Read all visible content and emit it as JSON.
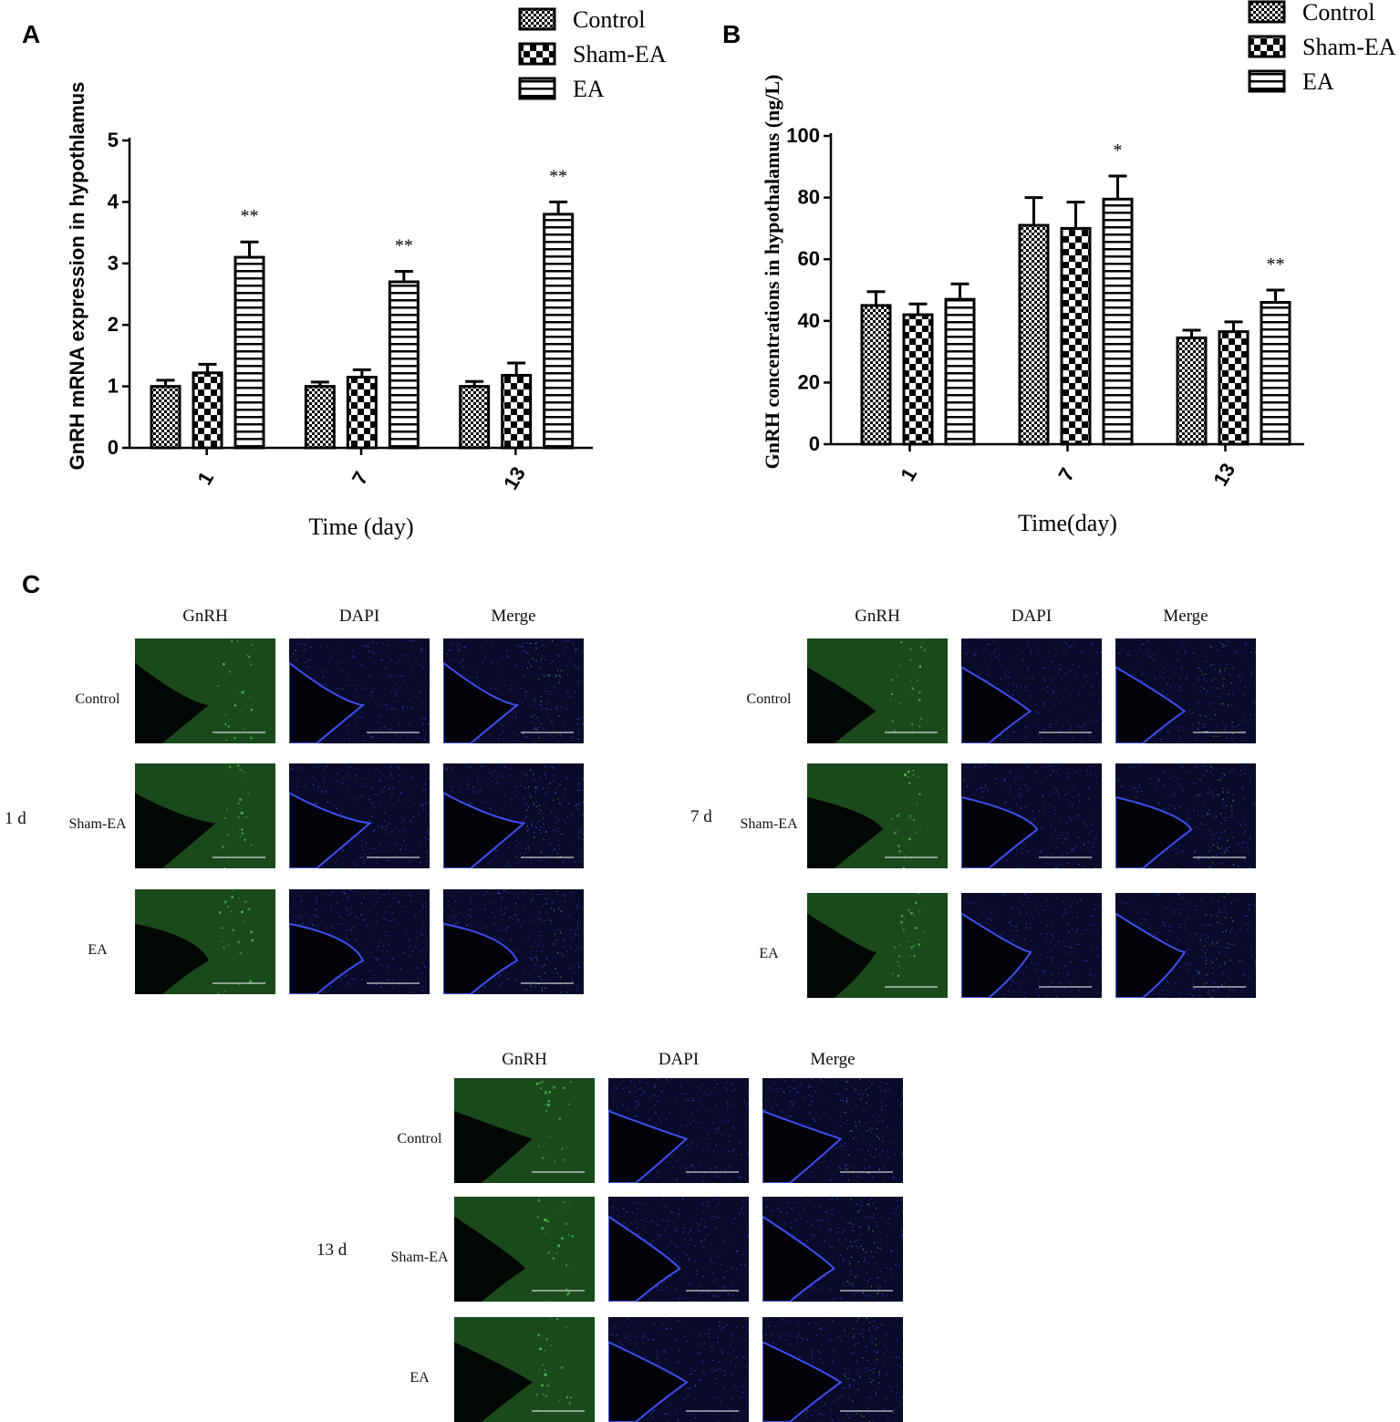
{
  "panels": {
    "a": "A",
    "b": "B",
    "c": "C"
  },
  "colors": {
    "green": "#1e5a22",
    "blue": "#2236b0",
    "black": "#000000"
  },
  "chart_data": [
    {
      "type": "bar",
      "panel": "A",
      "categories": [
        "1",
        "7",
        "13"
      ],
      "series": [
        {
          "name": "Control",
          "pattern": "checker-fine",
          "values": [
            1.0,
            1.0,
            1.0
          ],
          "errors": [
            0.1,
            0.07,
            0.08
          ]
        },
        {
          "name": "Sham-EA",
          "pattern": "checker-coarse",
          "values": [
            1.22,
            1.15,
            1.18
          ],
          "errors": [
            0.14,
            0.12,
            0.2
          ]
        },
        {
          "name": "EA",
          "pattern": "horizontal-stripes",
          "values": [
            3.1,
            2.7,
            3.8
          ],
          "errors": [
            0.25,
            0.17,
            0.2
          ]
        }
      ],
      "significance": [
        "**",
        "**",
        "**"
      ],
      "xlabel": "Time (day)",
      "ylabel": "GnRH mRNA expression in hypothlamus",
      "ylim": [
        0,
        5
      ],
      "yticks": [
        "0",
        "1",
        "2",
        "3",
        "4",
        "5"
      ],
      "legend": "top"
    },
    {
      "type": "bar",
      "panel": "B",
      "categories": [
        "1",
        "7",
        "13"
      ],
      "series": [
        {
          "name": "Control",
          "pattern": "checker-fine",
          "values": [
            45,
            71,
            34.5
          ],
          "errors": [
            4.5,
            9,
            2.5
          ]
        },
        {
          "name": "Sham-EA",
          "pattern": "checker-coarse",
          "values": [
            42,
            70,
            36.5
          ],
          "errors": [
            3.5,
            8.5,
            3.2
          ]
        },
        {
          "name": "EA",
          "pattern": "horizontal-stripes",
          "values": [
            47,
            79.5,
            46
          ],
          "errors": [
            5,
            7.5,
            4
          ]
        }
      ],
      "significance": [
        "",
        "*",
        "**"
      ],
      "xlabel": "Time(day)",
      "ylabel": "GnRH  concentrations in hypothalamus (ng/L)",
      "ylim": [
        0,
        100
      ],
      "yticks": [
        "0",
        "20",
        "40",
        "60",
        "80",
        "100"
      ],
      "legend": "top-right"
    }
  ],
  "micrographs": {
    "columns": [
      "GnRH",
      "DAPI",
      "Merge"
    ],
    "groups": [
      {
        "day": "1 d",
        "rows": [
          "Control",
          "Sham-EA",
          "EA"
        ]
      },
      {
        "day": "7 d",
        "rows": [
          "Control",
          "Sham-EA",
          "EA"
        ]
      },
      {
        "day": "13 d",
        "rows": [
          "Control",
          "Sham-EA",
          "EA"
        ]
      }
    ]
  }
}
